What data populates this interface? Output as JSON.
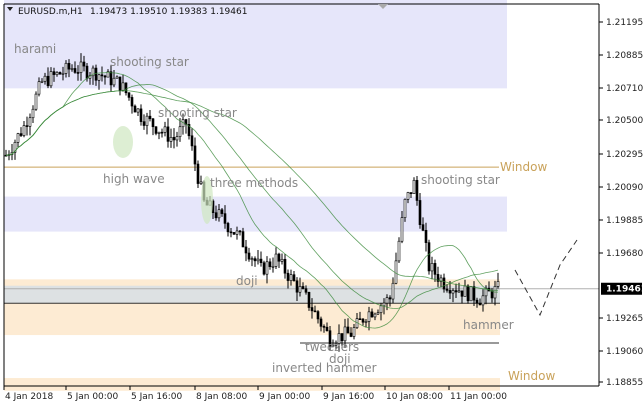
{
  "header": {
    "symbol": "EURUSD.m,H1",
    "ohlc": "1.19473 1.19510 1.19383 1.19461"
  },
  "chart_data": {
    "type": "candlestick",
    "symbol": "EURUSD.m",
    "timeframe": "H1",
    "ylim": [
      1.1885,
      1.2125
    ],
    "y_ticks": [
      "1.21195",
      "1.20885",
      "1.20710",
      "1.20500",
      "1.20295",
      "1.20090",
      "1.19885",
      "1.19680",
      "1.19265",
      "1.19060",
      "1.18855"
    ],
    "current_price": "1.19461",
    "x_ticks": [
      "4 Jan 2018",
      "5 Jan 00:00",
      "5 Jan 16:00",
      "8 Jan 08:00",
      "9 Jan 00:00",
      "9 Jan 16:00",
      "10 Jan 08:00",
      "11 Jan 00:00"
    ],
    "annotations": [
      {
        "text": "harami",
        "price": 1.209
      },
      {
        "text": "shooting star",
        "price": 1.207
      },
      {
        "text": "shooting star",
        "price": 1.2075
      },
      {
        "text": "high wave",
        "price": 1.203
      },
      {
        "text": "three methods",
        "price": 1.201
      },
      {
        "text": "shooting star",
        "price": 1.2015
      },
      {
        "text": "doji",
        "price": 1.196
      },
      {
        "text": "hammer",
        "price": 1.193
      },
      {
        "text": "tweezers",
        "price": 1.1913
      },
      {
        "text": "doji",
        "price": 1.1913
      },
      {
        "text": "inverted hammer",
        "price": 1.1913
      }
    ],
    "levels": [
      {
        "text": "Window",
        "price": 1.20225
      },
      {
        "text": "Window",
        "price": 1.1887
      }
    ],
    "zones": [
      {
        "kind": "resistance",
        "color": "#e6e6fa",
        "from": 1.2072,
        "to": 1.2137
      },
      {
        "kind": "resistance",
        "color": "#e6e6fa",
        "from": 1.1982,
        "to": 1.2004
      },
      {
        "kind": "support",
        "color": "#fdebd3",
        "from": 1.1917,
        "to": 1.1952
      },
      {
        "kind": "gap",
        "color": "#dde1e3",
        "from": 1.1937,
        "to": 1.1948
      },
      {
        "kind": "support",
        "color": "#fdebd3",
        "from": 1.1882,
        "to": 1.189
      }
    ],
    "colors": {
      "candle": "#000000",
      "ma": "#3a8a3a",
      "window": "#c9a25a"
    }
  }
}
